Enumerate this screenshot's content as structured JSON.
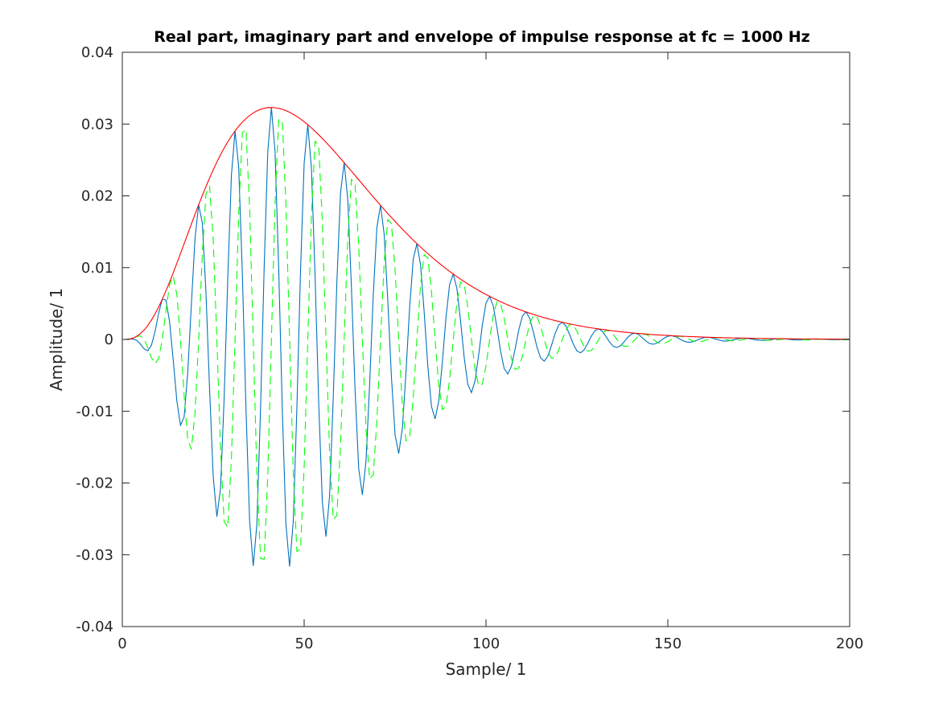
{
  "chart_data": {
    "type": "line",
    "title": "Real part, imaginary part and envelope of impulse response at fc = 1000 Hz",
    "xlabel": "Sample/ 1",
    "ylabel": "Amplitude/ 1",
    "xlim": [
      0,
      200
    ],
    "ylim": [
      -0.04,
      0.04
    ],
    "xticks": [
      0,
      50,
      100,
      150,
      200
    ],
    "xtick_labels": [
      "0",
      "50",
      "100",
      "150",
      "200"
    ],
    "yticks": [
      -0.04,
      -0.03,
      -0.02,
      -0.01,
      0,
      0.01,
      0.02,
      0.03,
      0.04
    ],
    "ytick_labels": [
      "-0.04",
      "-0.03",
      "-0.02",
      "-0.01",
      "0",
      "0.01",
      "0.02",
      "0.03",
      "0.04"
    ],
    "grid": false,
    "x_start": 0,
    "series": [
      {
        "role": "real",
        "color": "#0072BD",
        "style": "solid",
        "values": [
          0,
          1e-05,
          5e-05,
          6e-05,
          -0.00014,
          -0.00066,
          -0.00131,
          -0.00157,
          -0.00083,
          0.0011,
          0.00366,
          0.0056,
          0.00547,
          0.00247,
          -0.00287,
          -0.00858,
          -0.01196,
          -0.01079,
          -0.00455,
          0.00497,
          0.01411,
          0.01876,
          0.01622,
          0.00658,
          -0.00695,
          -0.01911,
          -0.0247,
          -0.0208,
          -0.00823,
          0.0085,
          0.02291,
          0.02904,
          0.02402,
          0.00935,
          -0.00951,
          -0.02523,
          -0.03155,
          -0.02575,
          -0.0099,
          0.00995,
          0.02613,
          0.0323,
          0.02611,
          0.00995,
          -0.00991,
          -0.02579,
          -0.03164,
          -0.02538,
          -0.0096,
          0.00949,
          0.02453,
          0.02991,
          0.02384,
          0.00896,
          -0.00881,
          -0.02265,
          -0.02747,
          -0.02178,
          -0.00815,
          0.00797,
          0.0204,
          0.02463,
          0.01944,
          0.00724,
          -0.00706,
          -0.01799,
          -0.02164,
          -0.01702,
          -0.00632,
          0.00613,
          0.01559,
          0.01869,
          0.01465,
          0.00542,
          -0.00525,
          -0.0133,
          -0.0159,
          -0.01243,
          -0.00459,
          0.00443,
          0.01119,
          0.01335,
          0.01041,
          0.00383,
          -0.00369,
          -0.00931,
          -0.01108,
          -0.00863,
          -0.00317,
          0.00305,
          0.00767,
          0.00911,
          0.00708,
          0.0026,
          -0.00249,
          -0.00626,
          -0.00742,
          -0.00575,
          -0.00211,
          0.00202,
          0.00506,
          0.00599,
          0.00464,
          0.0017,
          -0.00162,
          -0.00407,
          -0.00481,
          -0.00372,
          -0.00136,
          0.0013,
          0.00324,
          0.00383,
          0.00296,
          0.00108,
          -0.00103,
          -0.00257,
          -0.00303,
          -0.00234,
          -0.00085,
          0.00081,
          0.00202,
          0.00239,
          0.00184,
          0.00067,
          -0.00064,
          -0.00159,
          -0.00187,
          -0.00144,
          -0.00052,
          0.0005,
          0.00124,
          0.00146,
          0.00112,
          0.00041,
          -0.00039,
          -0.00096,
          -0.00113,
          -0.00087,
          -0.00032,
          0.0003,
          0.00074,
          0.00087,
          0.00067,
          0.00024,
          -0.00023,
          -0.00057,
          -0.00067,
          -0.00052,
          -0.00019,
          0.00018,
          0.00044,
          0.00052,
          0.0004,
          0.00014,
          -0.00014,
          -0.00034,
          -0.0004,
          -0.0003,
          -0.00011,
          0.0001,
          0.00026,
          0.0003,
          0.00023,
          8e-05,
          -8e-05,
          -0.0002,
          -0.00023,
          -0.00018,
          -6e-05,
          6e-05,
          0.00015,
          0.00017,
          0.00013,
          5e-05,
          -5e-05,
          -0.00011,
          -0.00013,
          -0.0001,
          -4e-05,
          3e-05,
          9e-05,
          0.0001,
          8e-05,
          3e-05,
          -3e-05,
          -6e-05,
          -8e-05,
          -6e-05,
          -2e-05,
          2e-05,
          5e-05,
          6e-05,
          4e-05,
          2e-05,
          -1e-05,
          -4e-05,
          -4e-05,
          -3e-05,
          -1e-05,
          1e-05,
          3e-05
        ]
      },
      {
        "role": "imaginary",
        "color": "#00FF00",
        "style": "dashed",
        "values": [
          0,
          0,
          4e-05,
          0.00019,
          0.00043,
          0.00048,
          0,
          -0.00114,
          -0.00255,
          -0.00338,
          -0.00266,
          0,
          0.00398,
          0.0076,
          0.00882,
          0.00624,
          0,
          -0.00784,
          -0.01399,
          -0.0153,
          -0.01025,
          0,
          0.01179,
          0.02025,
          0.02139,
          0.01389,
          0,
          -0.01512,
          -0.02534,
          -0.02617,
          -0.01665,
          0,
          0.01746,
          0.02878,
          0.02926,
          0.01834,
          0,
          -0.01872,
          -0.03048,
          -0.03063,
          -0.01899,
          0,
          0.01898,
          0.03061,
          0.03048,
          0.01874,
          0,
          -0.01845,
          -0.02954,
          -0.02921,
          -0.01783,
          0,
          0.01733,
          0.02758,
          0.02711,
          0.01646,
          0,
          -0.01583,
          -0.02507,
          -0.02453,
          -0.01483,
          0,
          0.01413,
          0.02229,
          0.02172,
          0.01308,
          0,
          -0.01237,
          -0.01944,
          -0.01888,
          -0.01133,
          0,
          0.01065,
          0.01668,
          0.01615,
          0.00966,
          0,
          -0.00904,
          -0.01412,
          -0.01363,
          -0.00814,
          0,
          0.00757,
          0.0118,
          0.01137,
          0.00677,
          0,
          -0.00627,
          -0.00976,
          -0.00938,
          -0.00557,
          0,
          0.00514,
          0.00799,
          0.00767,
          0.00455,
          0,
          -0.00418,
          -0.00648,
          -0.00621,
          -0.00368,
          0,
          0.00337,
          0.00522,
          0.005,
          0.00295,
          0,
          -0.0027,
          -0.00418,
          -0.00399,
          -0.00236,
          0,
          0.00215,
          0.00332,
          0.00317,
          0.00187,
          0,
          -0.0017,
          -0.00262,
          -0.0025,
          -0.00147,
          0,
          0.00134,
          0.00206,
          0.00196,
          0.00115,
          0,
          -0.00105,
          -0.00161,
          -0.00153,
          -0.0009,
          0,
          0.00081,
          0.00125,
          0.00119,
          0.0007,
          0,
          -0.00063,
          -0.00097,
          -0.00092,
          -0.00054,
          0,
          0.00049,
          0.00075,
          0.00071,
          0.00042,
          0,
          -0.00038,
          -0.00058,
          -0.00055,
          -0.00032,
          0,
          0.00029,
          0.00044,
          0.00042,
          0.00025,
          0,
          -0.00022,
          -0.00034,
          -0.00032,
          -0.00019,
          0,
          0.00017,
          0.00026,
          0.00024,
          0.00014,
          0,
          -0.00013,
          -0.0002,
          -0.00019,
          -0.00011,
          0,
          0.0001,
          0.00015,
          0.00014,
          8e-05,
          0,
          -7e-05,
          -0.00011,
          -0.00011,
          -6e-05,
          0,
          6e-05,
          8e-05,
          8e-05,
          5e-05,
          0,
          -4e-05,
          -6e-05,
          -6e-05,
          -4e-05,
          0,
          3e-05,
          5e-05,
          4e-05,
          3e-05,
          0,
          -2e-05,
          -4e-05,
          -3e-05,
          -2e-05
        ]
      },
      {
        "role": "envelope",
        "color": "#FF0000",
        "style": "solid",
        "values": [
          0,
          1e-05,
          7e-05,
          0.0002,
          0.00045,
          0.00082,
          0.00131,
          0.00194,
          0.00268,
          0.00355,
          0.00453,
          0.0056,
          0.00676,
          0.00799,
          0.00928,
          0.01061,
          0.01196,
          0.01334,
          0.01471,
          0.01608,
          0.01744,
          0.01876,
          0.02005,
          0.02129,
          0.02249,
          0.02362,
          0.0247,
          0.02571,
          0.02665,
          0.02752,
          0.02832,
          0.02904,
          0.02969,
          0.03026,
          0.03076,
          0.03119,
          0.03155,
          0.03183,
          0.03205,
          0.03221,
          0.03229,
          0.0323,
          0.03227,
          0.03219,
          0.03206,
          0.03187,
          0.03164,
          0.03137,
          0.03106,
          0.03071,
          0.03033,
          0.02991,
          0.02947,
          0.029,
          0.02851,
          0.028,
          0.02747,
          0.02692,
          0.02637,
          0.02579,
          0.02521,
          0.02463,
          0.02403,
          0.02344,
          0.02284,
          0.02224,
          0.02164,
          0.02104,
          0.02044,
          0.01985,
          0.01927,
          0.01869,
          0.01811,
          0.01754,
          0.01699,
          0.01644,
          0.0159,
          0.01537,
          0.01485,
          0.01434,
          0.01384,
          0.01335,
          0.01287,
          0.01241,
          0.01196,
          0.01151,
          0.01108,
          0.01067,
          0.01026,
          0.00986,
          0.00948,
          0.00911,
          0.00875,
          0.0084,
          0.00806,
          0.00773,
          0.00742,
          0.00711,
          0.00682,
          0.00653,
          0.00626,
          0.00599,
          0.00574,
          0.00549,
          0.00525,
          0.00503,
          0.00481,
          0.00459,
          0.00439,
          0.0042,
          0.00401,
          0.00383,
          0.00365,
          0.00349,
          0.00333,
          0.00318,
          0.00303,
          0.00289,
          0.00276,
          0.00263,
          0.0025,
          0.00239,
          0.00227,
          0.00216,
          0.00206,
          0.00196,
          0.00187,
          0.00178,
          0.00169,
          0.00161,
          0.00153,
          0.00146,
          0.00139,
          0.00132,
          0.00125,
          0.00119,
          0.00113,
          0.00107,
          0.00102,
          0.00097,
          0.00092,
          0.00087,
          0.00083,
          0.00079,
          0.00075,
          0.00071,
          0.00067,
          0.00064,
          0.00061,
          0.00058,
          0.00055,
          0.00052,
          0.00049,
          0.00047,
          0.00044,
          0.00042,
          0.0004,
          0.00038,
          0.00036,
          0.00034,
          0.00032,
          0.0003,
          0.00029,
          0.00027,
          0.00026,
          0.00024,
          0.00023,
          0.00022,
          0.00021,
          0.0002,
          0.00019,
          0.00017,
          0.00017,
          0.00016,
          0.00015,
          0.00014,
          0.00013,
          0.00013,
          0.00012,
          0.00011,
          0.00011,
          0.0001,
          9e-05,
          9e-05,
          8e-05,
          8e-05,
          8e-05,
          7e-05,
          7e-05,
          6e-05,
          6e-05,
          6e-05,
          5e-05,
          5e-05,
          5e-05,
          5e-05,
          4e-05,
          4e-05,
          4e-05,
          4e-05,
          3e-05
        ]
      }
    ]
  }
}
